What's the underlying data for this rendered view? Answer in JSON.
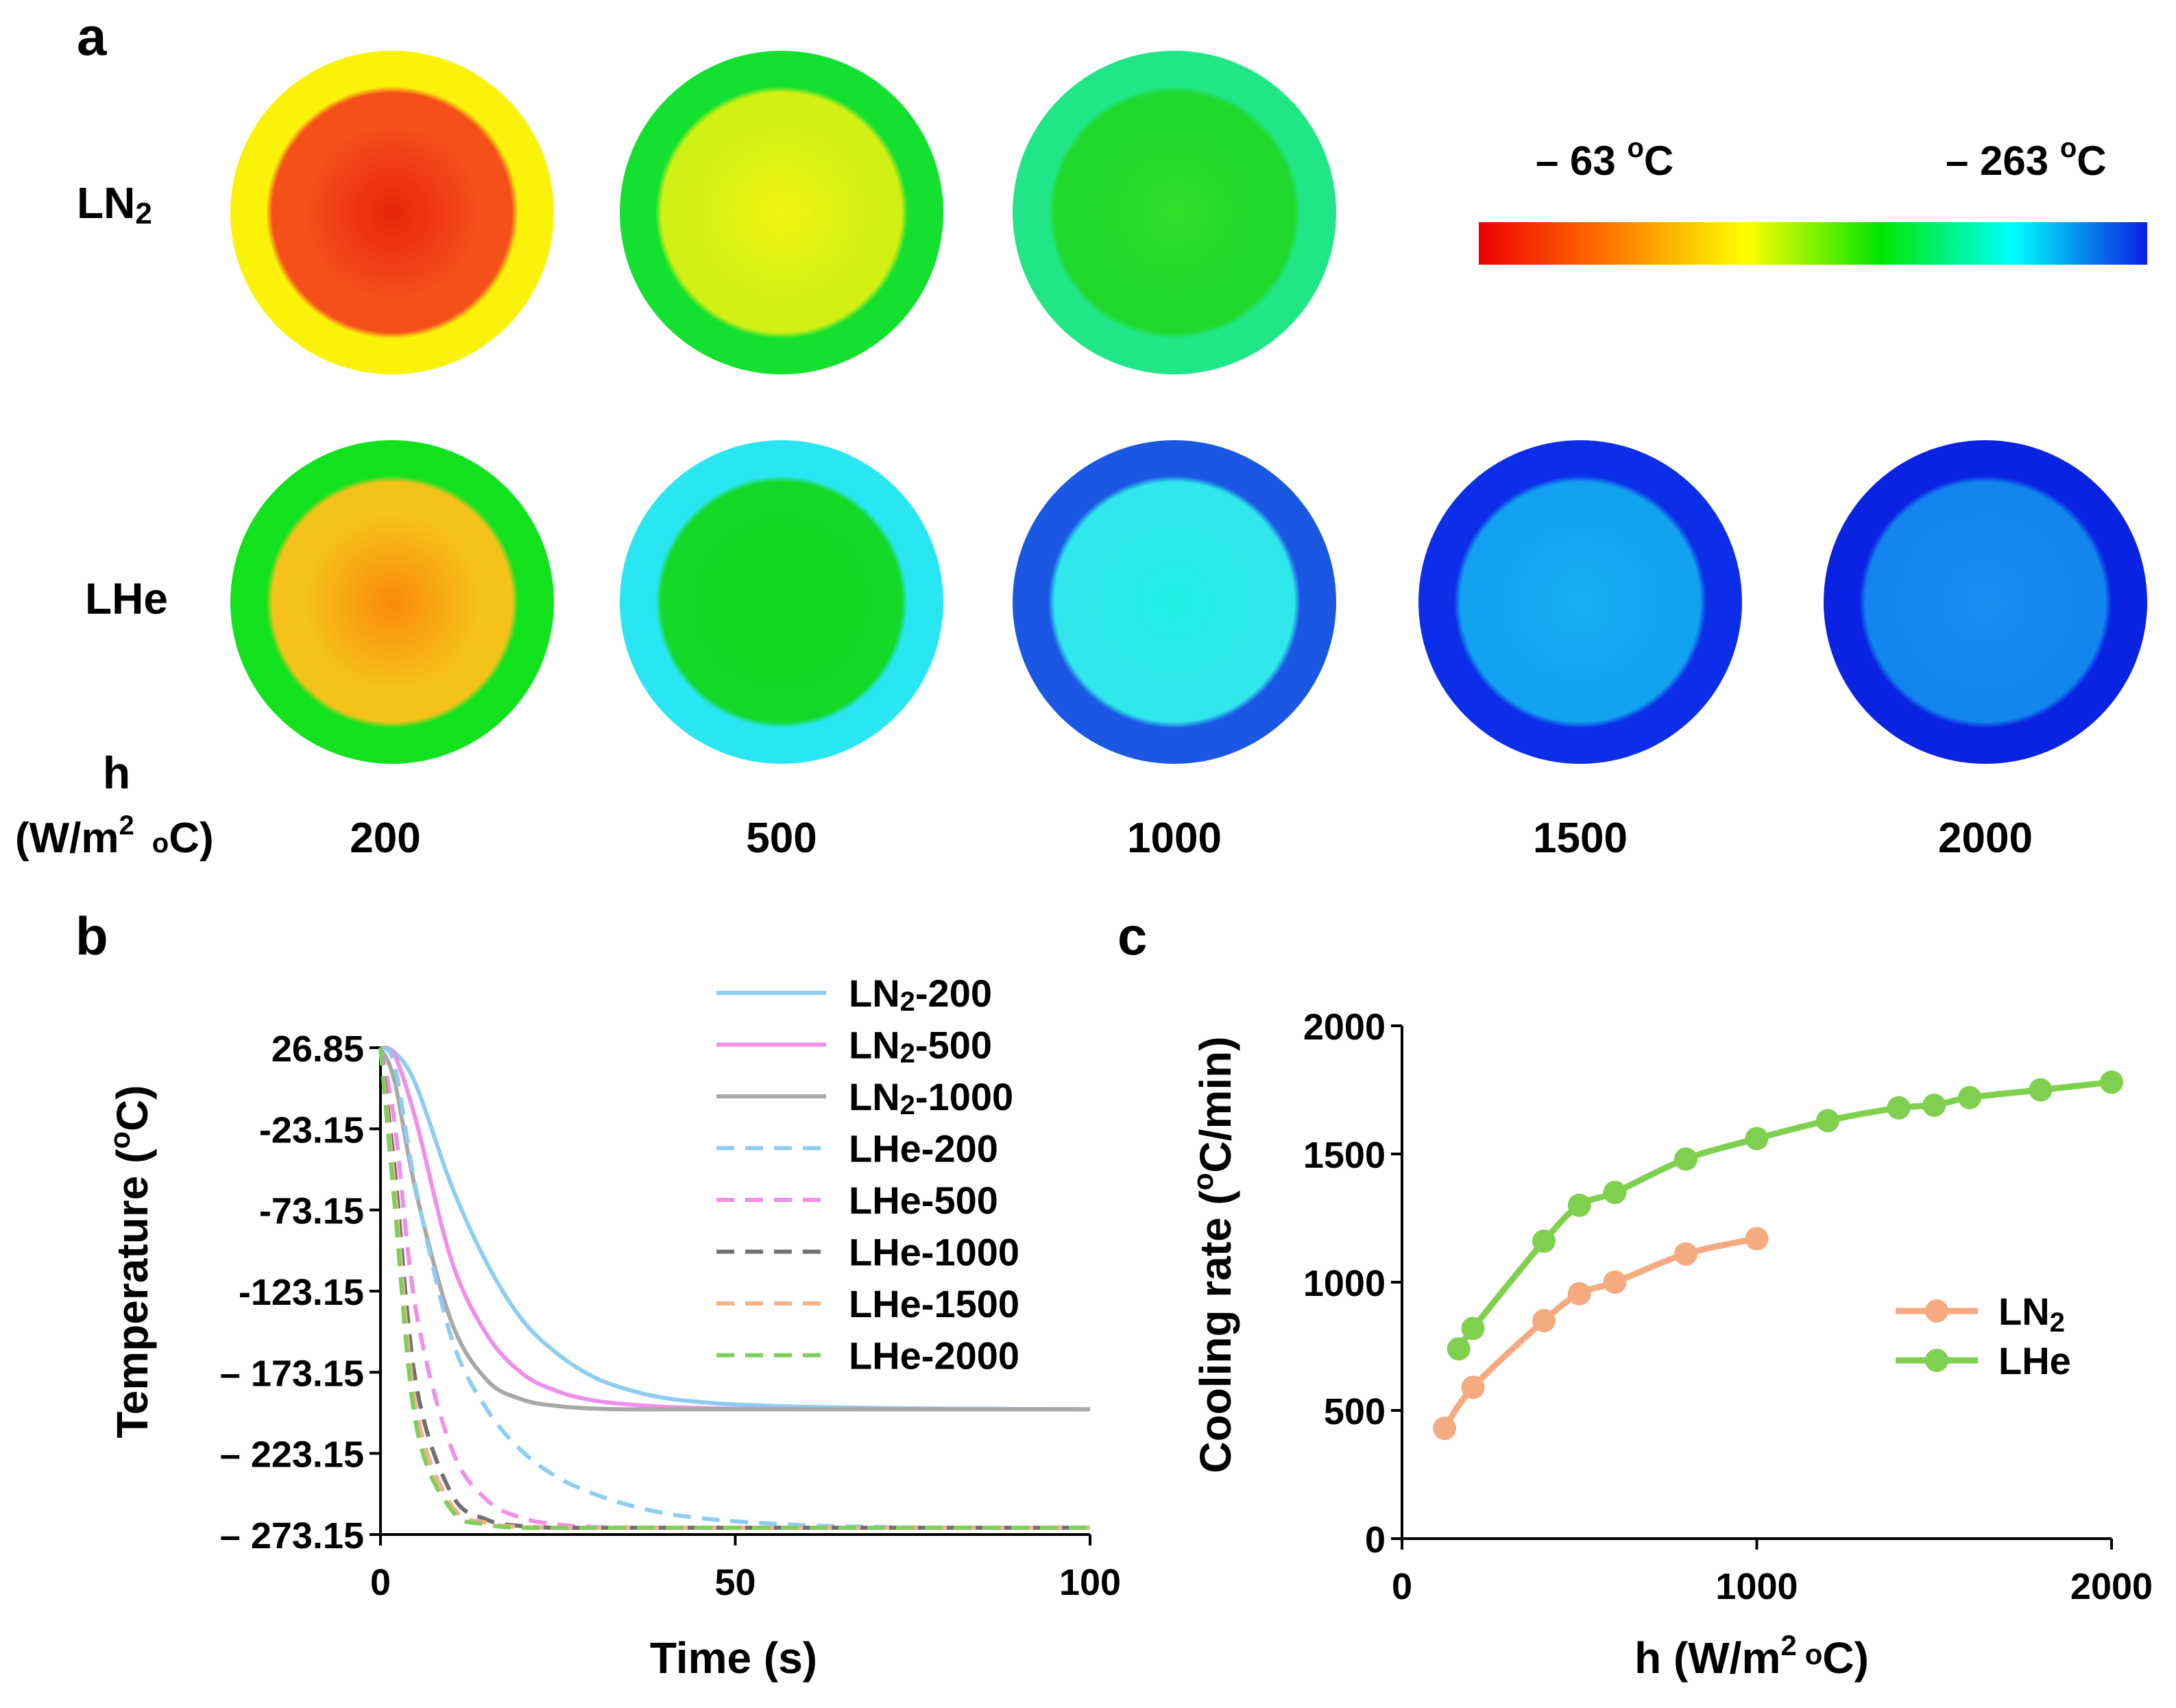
{
  "panel_a": {
    "label": "a",
    "rows": [
      {
        "label_main": "LN",
        "label_sub": "2",
        "circles": [
          {
            "h": "200",
            "core": "#e8250a",
            "mid": "#f5501a",
            "ring": "#fbf20a"
          },
          {
            "h": "500",
            "core": "#f2f510",
            "mid": "#d2f014",
            "ring": "#14e030"
          },
          {
            "h": "1000",
            "core": "#2ee02a",
            "mid": "#20d82c",
            "ring": "#20e688"
          }
        ]
      },
      {
        "label_main": "LHe",
        "label_sub": "",
        "circles": [
          {
            "h": "200",
            "core": "#fb8a0a",
            "mid": "#f5c21a",
            "ring": "#12e21e"
          },
          {
            "h": "500",
            "core": "#10d81c",
            "mid": "#12d826",
            "ring": "#2ae6f2"
          },
          {
            "h": "1000",
            "core": "#20f0e6",
            "mid": "#30e8ec",
            "ring": "#1a58e4"
          },
          {
            "h": "1500",
            "core": "#1ab0f2",
            "mid": "#12a2f0",
            "ring": "#0c2ee8"
          },
          {
            "h": "2000",
            "core": "#1a8ef0",
            "mid": "#1286ee",
            "ring": "#0a22e2"
          }
        ]
      }
    ],
    "h_label_1": "h",
    "h_label_2": "(W/m",
    "h_label_sup": "2",
    "h_label_3": "oC)",
    "h_values": [
      "200",
      "500",
      "1000",
      "1500",
      "2000"
    ],
    "colorbar": {
      "min_label": "– 63 ",
      "min_unit_sup": "o",
      "min_unit": "C",
      "max_label": "– 263 ",
      "max_unit_sup": "o",
      "max_unit": "C",
      "stops": [
        "#ee0000",
        "#ff7a00",
        "#ffff00",
        "#00e600",
        "#00ffff",
        "#0a1ee0"
      ]
    }
  },
  "chart_data": [
    {
      "panel": "b",
      "type": "line",
      "title": "",
      "xlabel": "Time (s)",
      "ylabel": "Temperature (oC)",
      "xlim": [
        0,
        100
      ],
      "ylim": [
        -273.15,
        26.85
      ],
      "xticks": [
        0,
        50,
        100
      ],
      "yticks": [
        26.85,
        -23.15,
        -73.15,
        -123.15,
        -173.15,
        -223.15,
        -273.15
      ],
      "ytick_labels": [
        "26.85",
        "-23.15",
        "-73.15",
        "-123.15",
        "– 173.15",
        "– 223.15",
        "– 273.15"
      ],
      "x": [
        0,
        2,
        5,
        10,
        15,
        20,
        25,
        30,
        35,
        40,
        45,
        50,
        60,
        70,
        80,
        90,
        100
      ],
      "series": [
        {
          "name": "LN2-200",
          "legend_main": "LN",
          "legend_sub": "2",
          "legend_tail": "-200",
          "color": "#8ecdf2",
          "dash": false,
          "values": [
            26.85,
            24,
            4,
            -58,
            -106,
            -141,
            -162,
            -176,
            -184,
            -189,
            -191.5,
            -193,
            -194.5,
            -195.2,
            -195.6,
            -195.8,
            -196
          ]
        },
        {
          "name": "LN2-500",
          "legend_main": "LN",
          "legend_sub": "2",
          "legend_tail": "-500",
          "color": "#f08ee8",
          "dash": false,
          "values": [
            26.85,
            22,
            -18,
            -104,
            -150,
            -174,
            -185,
            -190.5,
            -193,
            -194.5,
            -195.2,
            -195.6,
            -195.9,
            -196,
            -196,
            -196,
            -196
          ]
        },
        {
          "name": "LN2-1000",
          "legend_main": "LN",
          "legend_sub": "2",
          "legend_tail": "-1000",
          "color": "#a8a8a8",
          "dash": false,
          "values": [
            26.85,
            6,
            -62,
            -142,
            -178,
            -190,
            -194,
            -195.5,
            -196,
            -196,
            -196,
            -196,
            -196,
            -196,
            -196,
            -196,
            -196
          ]
        },
        {
          "name": "LHe-200",
          "legend_main": "LHe-200",
          "legend_sub": "",
          "legend_tail": "",
          "color": "#8ecdf2",
          "dash": true,
          "values": [
            26.85,
            16,
            -60,
            -152,
            -196,
            -222,
            -238,
            -248,
            -255,
            -260,
            -263,
            -265,
            -267.5,
            -268.5,
            -268.9,
            -269,
            -269
          ]
        },
        {
          "name": "LHe-500",
          "legend_main": "LHe-500",
          "legend_sub": "",
          "legend_tail": "",
          "color": "#f08ee8",
          "dash": true,
          "values": [
            26.85,
            -20,
            -135,
            -220,
            -252,
            -263,
            -267,
            -268.5,
            -269,
            -269,
            -269,
            -269,
            -269,
            -269,
            -269,
            -269,
            -269
          ]
        },
        {
          "name": "LHe-1000",
          "legend_main": "LHe-1000",
          "legend_sub": "",
          "legend_tail": "",
          "color": "#707070",
          "dash": true,
          "values": [
            26.85,
            -48,
            -180,
            -248,
            -264,
            -268,
            -269,
            -269,
            -269,
            -269,
            -269,
            -269,
            -269,
            -269,
            -269,
            -269,
            -269
          ]
        },
        {
          "name": "LHe-1500",
          "legend_main": "LHe-1500",
          "legend_sub": "",
          "legend_tail": "",
          "color": "#f5b088",
          "dash": true,
          "values": [
            26.85,
            -60,
            -195,
            -255,
            -266,
            -268.5,
            -269,
            -269,
            -269,
            -269,
            -269,
            -269,
            -269,
            -269,
            -269,
            -269,
            -269
          ]
        },
        {
          "name": "LHe-2000",
          "legend_main": "LHe-2000",
          "legend_sub": "",
          "legend_tail": "",
          "color": "#7ecf5a",
          "dash": true,
          "values": [
            26.85,
            -70,
            -205,
            -258,
            -267,
            -269,
            -269,
            -269,
            -269,
            -269,
            -269,
            -269,
            -269,
            -269,
            -269,
            -269,
            -269
          ]
        }
      ]
    },
    {
      "panel": "c",
      "type": "line",
      "title": "",
      "xlabel": "h (W/m2 oC)",
      "ylabel": "Cooling rate (oC/min)",
      "xlim": [
        0,
        2000
      ],
      "ylim": [
        0,
        2000
      ],
      "xticks": [
        0,
        1000,
        2000
      ],
      "yticks": [
        0,
        500,
        1000,
        1500,
        2000
      ],
      "legend_position": "right",
      "series": [
        {
          "name": "LN2",
          "legend_main": "LN",
          "legend_sub": "2",
          "color": "#f5aa80",
          "x": [
            120,
            200,
            400,
            500,
            600,
            800,
            1000
          ],
          "values": [
            430,
            590,
            850,
            955,
            1000,
            1110,
            1170
          ]
        },
        {
          "name": "LHe",
          "legend_main": "LHe",
          "legend_sub": "",
          "color": "#7ed04e",
          "x": [
            160,
            200,
            400,
            500,
            600,
            800,
            1000,
            1200,
            1400,
            1500,
            1600,
            1800,
            2000
          ],
          "values": [
            740,
            820,
            1160,
            1300,
            1350,
            1480,
            1560,
            1630,
            1680,
            1690,
            1720,
            1750,
            1780
          ]
        }
      ]
    }
  ]
}
